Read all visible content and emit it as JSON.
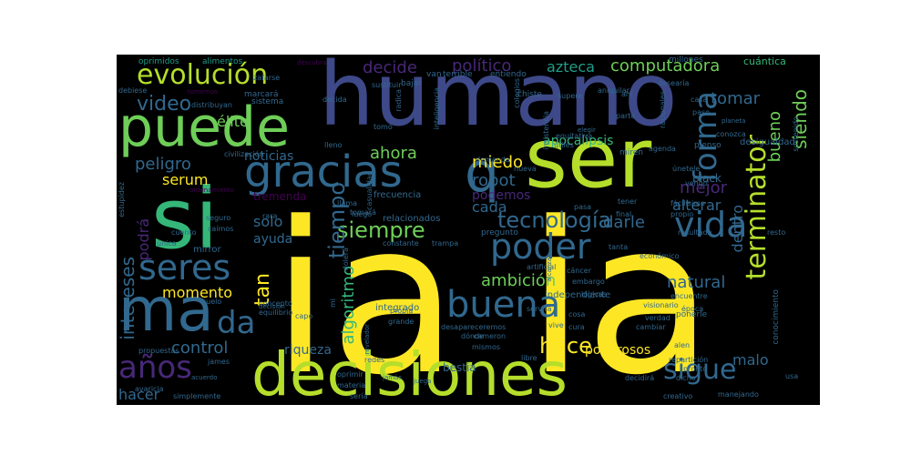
{
  "palette": {
    "yellow": "#fde725",
    "lime": "#b5de2b",
    "green": "#6ece58",
    "mint": "#35b779",
    "teal": "#1f9e89",
    "cyan": "#26828e",
    "steel": "#31688e",
    "blue": "#3e4989",
    "indigo": "#482878",
    "purple": "#440154"
  },
  "words": [
    {
      "text": "ia",
      "size": 230,
      "color": "yellow",
      "vertical": false
    },
    {
      "text": "ia",
      "size": 230,
      "color": "yellow",
      "vertical": false
    },
    {
      "text": "humano",
      "size": 96,
      "color": "blue",
      "vertical": false
    },
    {
      "text": "decisiones",
      "size": 66,
      "color": "lime",
      "vertical": false
    },
    {
      "text": "ser",
      "size": 90,
      "color": "lime",
      "vertical": false
    },
    {
      "text": "si",
      "size": 92,
      "color": "mint",
      "vertical": false
    },
    {
      "text": "puede",
      "size": 60,
      "color": "green",
      "vertical": false
    },
    {
      "text": "ma",
      "size": 66,
      "color": "steel",
      "vertical": false
    },
    {
      "text": "q",
      "size": 60,
      "color": "steel",
      "vertical": false
    },
    {
      "text": "gracias",
      "size": 48,
      "color": "steel",
      "vertical": false
    },
    {
      "text": "evolución",
      "size": 30,
      "color": "lime",
      "vertical": false
    },
    {
      "text": "buena",
      "size": 40,
      "color": "steel",
      "vertical": false
    },
    {
      "text": "poder",
      "size": 38,
      "color": "steel",
      "vertical": false
    },
    {
      "text": "vida",
      "size": 38,
      "color": "steel",
      "vertical": false
    },
    {
      "text": "seres",
      "size": 38,
      "color": "steel",
      "vertical": false
    },
    {
      "text": "años",
      "size": 34,
      "color": "indigo",
      "vertical": false
    },
    {
      "text": "da",
      "size": 34,
      "color": "steel",
      "vertical": false
    },
    {
      "text": "forma",
      "size": 34,
      "color": "steel",
      "vertical": true
    },
    {
      "text": "terminator",
      "size": 30,
      "color": "lime",
      "vertical": true
    },
    {
      "text": "sigue",
      "size": 30,
      "color": "steel",
      "vertical": false
    },
    {
      "text": "tecnología",
      "size": 24,
      "color": "steel",
      "vertical": false
    },
    {
      "text": "siempre",
      "size": 24,
      "color": "green",
      "vertical": false
    },
    {
      "text": "hace",
      "size": 24,
      "color": "yellow",
      "vertical": false
    },
    {
      "text": "tiempo",
      "size": 24,
      "color": "steel",
      "vertical": true
    },
    {
      "text": "algoritmo",
      "size": 18,
      "color": "mint",
      "vertical": true
    },
    {
      "text": "intereses",
      "size": 20,
      "color": "steel",
      "vertical": true
    },
    {
      "text": "podrá",
      "size": 16,
      "color": "indigo",
      "vertical": true
    },
    {
      "text": "tan",
      "size": 22,
      "color": "yellow",
      "vertical": true
    },
    {
      "text": "siendo",
      "size": 20,
      "color": "green",
      "vertical": true
    },
    {
      "text": "bueno",
      "size": 18,
      "color": "green",
      "vertical": true
    },
    {
      "text": "dentro",
      "size": 16,
      "color": "steel",
      "vertical": true
    },
    {
      "text": "computadora",
      "size": 18,
      "color": "green",
      "vertical": false
    },
    {
      "text": "político",
      "size": 18,
      "color": "indigo",
      "vertical": false
    },
    {
      "text": "decide",
      "size": 18,
      "color": "indigo",
      "vertical": false
    },
    {
      "text": "azteca",
      "size": 16,
      "color": "teal",
      "vertical": false
    },
    {
      "text": "video",
      "size": 22,
      "color": "steel",
      "vertical": false
    },
    {
      "text": "tomar",
      "size": 18,
      "color": "steel",
      "vertical": false
    },
    {
      "text": "peligro",
      "size": 18,
      "color": "steel",
      "vertical": false
    },
    {
      "text": "élite",
      "size": 16,
      "color": "green",
      "vertical": false
    },
    {
      "text": "noticias",
      "size": 14,
      "color": "steel",
      "vertical": false
    },
    {
      "text": "ahora",
      "size": 18,
      "color": "green",
      "vertical": false
    },
    {
      "text": "miedo",
      "size": 18,
      "color": "yellow",
      "vertical": false
    },
    {
      "text": "mejor",
      "size": 18,
      "color": "indigo",
      "vertical": false
    },
    {
      "text": "serum",
      "size": 16,
      "color": "yellow",
      "vertical": false
    },
    {
      "text": "robot",
      "size": 18,
      "color": "steel",
      "vertical": false
    },
    {
      "text": "podemos",
      "size": 14,
      "color": "indigo",
      "vertical": false
    },
    {
      "text": "cada",
      "size": 16,
      "color": "steel",
      "vertical": false
    },
    {
      "text": "darle",
      "size": 18,
      "color": "steel",
      "vertical": false
    },
    {
      "text": "alterar",
      "size": 16,
      "color": "steel",
      "vertical": false
    },
    {
      "text": "apocalipsis",
      "size": 14,
      "color": "mint",
      "vertical": false
    },
    {
      "text": "solo",
      "size": 16,
      "color": "steel",
      "vertical": false
    },
    {
      "text": "ayuda",
      "size": 14,
      "color": "steel",
      "vertical": false
    },
    {
      "text": "ambición",
      "size": 18,
      "color": "green",
      "vertical": false
    },
    {
      "text": "natural",
      "size": 18,
      "color": "steel",
      "vertical": false
    },
    {
      "text": "momento",
      "size": 16,
      "color": "yellow",
      "vertical": false
    },
    {
      "text": "control",
      "size": 18,
      "color": "steel",
      "vertical": false
    },
    {
      "text": "riqueza",
      "size": 14,
      "color": "steel",
      "vertical": false
    },
    {
      "text": "poderosos",
      "size": 14,
      "color": "yellow",
      "vertical": false
    },
    {
      "text": "malo",
      "size": 16,
      "color": "steel",
      "vertical": false
    },
    {
      "text": "hacer",
      "size": 16,
      "color": "steel",
      "vertical": false
    },
    {
      "text": "bestia",
      "size": 12,
      "color": "steel",
      "vertical": false
    },
    {
      "text": "black",
      "size": 12,
      "color": "steel",
      "vertical": false
    },
    {
      "text": "tremenda",
      "size": 12,
      "color": "purple",
      "vertical": false
    },
    {
      "text": "cuántica",
      "size": 11,
      "color": "mint",
      "vertical": false
    },
    {
      "text": "mirror",
      "size": 10,
      "color": "steel",
      "vertical": false
    },
    {
      "text": "desigualdad",
      "size": 10,
      "color": "steel",
      "vertical": false
    },
    {
      "text": "frecuencia",
      "size": 10,
      "color": "steel",
      "vertical": false
    },
    {
      "text": "relacionados",
      "size": 10,
      "color": "steel",
      "vertical": false
    },
    {
      "text": "integrado",
      "size": 10,
      "color": "steel",
      "vertical": false
    },
    {
      "text": "independiente",
      "size": 10,
      "color": "steel",
      "vertical": false
    },
    {
      "text": "conocimiento",
      "size": 9,
      "color": "steel",
      "vertical": true
    },
    {
      "text": "oprimidos",
      "size": 9,
      "color": "teal",
      "vertical": false
    },
    {
      "text": "alimentos",
      "size": 9,
      "color": "teal",
      "vertical": false
    },
    {
      "text": "millones",
      "size": 9,
      "color": "steel",
      "vertical": false
    },
    {
      "text": "terrible",
      "size": 9,
      "color": "steel",
      "vertical": false
    },
    {
      "text": "entiendo",
      "size": 9,
      "color": "steel",
      "vertical": false
    },
    {
      "text": "bajar",
      "size": 9,
      "color": "steel",
      "vertical": false
    },
    {
      "text": "van",
      "size": 9,
      "color": "steel",
      "vertical": false
    },
    {
      "text": "chiste",
      "size": 9,
      "color": "steel",
      "vertical": false
    },
    {
      "text": "sistema",
      "size": 9,
      "color": "steel",
      "vertical": false
    },
    {
      "text": "marcará",
      "size": 9,
      "color": "steel",
      "vertical": false
    },
    {
      "text": "distribuyan",
      "size": 8,
      "color": "steel",
      "vertical": false
    },
    {
      "text": "debiese",
      "size": 8,
      "color": "steel",
      "vertical": false
    },
    {
      "text": "civilización",
      "size": 8,
      "color": "steel",
      "vertical": false
    },
    {
      "text": "tomó",
      "size": 8,
      "color": "steel",
      "vertical": false
    },
    {
      "text": "lleno",
      "size": 8,
      "color": "steel",
      "vertical": false
    },
    {
      "text": "útiles",
      "size": 8,
      "color": "steel",
      "vertical": false
    },
    {
      "text": "equitativa",
      "size": 8,
      "color": "steel",
      "vertical": false
    },
    {
      "text": "pienso",
      "size": 9,
      "color": "steel",
      "vertical": false
    },
    {
      "text": "agenda",
      "size": 8,
      "color": "steel",
      "vertical": false
    },
    {
      "text": "miren",
      "size": 9,
      "color": "steel",
      "vertical": false
    },
    {
      "text": "nueva",
      "size": 8,
      "color": "steel",
      "vertical": false
    },
    {
      "text": "demanda",
      "size": 8,
      "color": "steel",
      "vertical": false
    },
    {
      "text": "únetele",
      "size": 8,
      "color": "steel",
      "vertical": false
    },
    {
      "text": "vengo",
      "size": 8,
      "color": "steel",
      "vertical": false
    },
    {
      "text": "llama",
      "size": 8,
      "color": "steel",
      "vertical": false
    },
    {
      "text": "tomará",
      "size": 8,
      "color": "steel",
      "vertical": false
    },
    {
      "text": "luego",
      "size": 8,
      "color": "steel",
      "vertical": false
    },
    {
      "text": "rara",
      "size": 8,
      "color": "steel",
      "vertical": false
    },
    {
      "text": "seguro",
      "size": 8,
      "color": "steel",
      "vertical": false
    },
    {
      "text": "caímos",
      "size": 8,
      "color": "steel",
      "vertical": false
    },
    {
      "text": "cuento",
      "size": 8,
      "color": "steel",
      "vertical": false
    },
    {
      "text": "única",
      "size": 8,
      "color": "steel",
      "vertical": false
    },
    {
      "text": "pregunto",
      "size": 9,
      "color": "steel",
      "vertical": false
    },
    {
      "text": "constante",
      "size": 8,
      "color": "steel",
      "vertical": false
    },
    {
      "text": "trampa",
      "size": 8,
      "color": "steel",
      "vertical": false
    },
    {
      "text": "pasa",
      "size": 8,
      "color": "steel",
      "vertical": false
    },
    {
      "text": "final",
      "size": 8,
      "color": "steel",
      "vertical": false
    },
    {
      "text": "tener",
      "size": 8,
      "color": "steel",
      "vertical": false
    },
    {
      "text": "fácilísimo",
      "size": 8,
      "color": "steel",
      "vertical": false
    },
    {
      "text": "propio",
      "size": 8,
      "color": "steel",
      "vertical": false
    },
    {
      "text": "resto",
      "size": 8,
      "color": "steel",
      "vertical": false
    },
    {
      "text": "resultado",
      "size": 8,
      "color": "steel",
      "vertical": false
    },
    {
      "text": "tanta",
      "size": 8,
      "color": "steel",
      "vertical": false
    },
    {
      "text": "cáncer",
      "size": 8,
      "color": "steel",
      "vertical": false
    },
    {
      "text": "embargo",
      "size": 8,
      "color": "steel",
      "vertical": false
    },
    {
      "text": "artificial",
      "size": 8,
      "color": "steel",
      "vertical": false
    },
    {
      "text": "económico",
      "size": 8,
      "color": "steel",
      "vertical": false
    },
    {
      "text": "visionario",
      "size": 8,
      "color": "steel",
      "vertical": false
    },
    {
      "text": "época",
      "size": 8,
      "color": "steel",
      "vertical": false
    },
    {
      "text": "encuentre",
      "size": 8,
      "color": "steel",
      "vertical": false
    },
    {
      "text": "lógicas",
      "size": 8,
      "color": "steel",
      "vertical": false
    },
    {
      "text": "verdad",
      "size": 8,
      "color": "steel",
      "vertical": false
    },
    {
      "text": "ponerle",
      "size": 9,
      "color": "steel",
      "vertical": false
    },
    {
      "text": "cambiar",
      "size": 8,
      "color": "steel",
      "vertical": false
    },
    {
      "text": "servirá",
      "size": 8,
      "color": "steel",
      "vertical": false
    },
    {
      "text": "cosa",
      "size": 8,
      "color": "steel",
      "vertical": false
    },
    {
      "text": "cura",
      "size": 8,
      "color": "steel",
      "vertical": false
    },
    {
      "text": "vive",
      "size": 8,
      "color": "steel",
      "vertical": false
    },
    {
      "text": "propia",
      "size": 8,
      "color": "steel",
      "vertical": false
    },
    {
      "text": "grande",
      "size": 8,
      "color": "steel",
      "vertical": false
    },
    {
      "text": "desapareceremos",
      "size": 8,
      "color": "steel",
      "vertical": false
    },
    {
      "text": "concepto",
      "size": 8,
      "color": "steel",
      "vertical": false
    },
    {
      "text": "equilibrio",
      "size": 8,
      "color": "steel",
      "vertical": false
    },
    {
      "text": "capo",
      "size": 8,
      "color": "steel",
      "vertical": false
    },
    {
      "text": "suelo",
      "size": 8,
      "color": "steel",
      "vertical": false
    },
    {
      "text": "decisión",
      "size": 7,
      "color": "steel",
      "vertical": false
    },
    {
      "text": "propuestas",
      "size": 8,
      "color": "steel",
      "vertical": false
    },
    {
      "text": "james",
      "size": 8,
      "color": "steel",
      "vertical": false
    },
    {
      "text": "cameron",
      "size": 8,
      "color": "steel",
      "vertical": false
    },
    {
      "text": "redes",
      "size": 8,
      "color": "steel",
      "vertical": false
    },
    {
      "text": "mismos",
      "size": 8,
      "color": "steel",
      "vertical": false
    },
    {
      "text": "libre",
      "size": 8,
      "color": "steel",
      "vertical": false
    },
    {
      "text": "pronto",
      "size": 8,
      "color": "steel",
      "vertical": false
    },
    {
      "text": "repartición",
      "size": 8,
      "color": "steel",
      "vertical": false
    },
    {
      "text": "dicho",
      "size": 8,
      "color": "steel",
      "vertical": false
    },
    {
      "text": "alen",
      "size": 8,
      "color": "steel",
      "vertical": false
    },
    {
      "text": "acuerdo",
      "size": 7,
      "color": "steel",
      "vertical": false
    },
    {
      "text": "avaricia",
      "size": 8,
      "color": "steel",
      "vertical": false
    },
    {
      "text": "simplemente",
      "size": 8,
      "color": "steel",
      "vertical": false
    },
    {
      "text": "oprimir",
      "size": 8,
      "color": "steel",
      "vertical": false
    },
    {
      "text": "materia",
      "size": 8,
      "color": "steel",
      "vertical": false
    },
    {
      "text": "sería",
      "size": 8,
      "color": "steel",
      "vertical": false
    },
    {
      "text": "decidirá",
      "size": 8,
      "color": "steel",
      "vertical": false
    },
    {
      "text": "creativo",
      "size": 8,
      "color": "steel",
      "vertical": false
    },
    {
      "text": "manejando",
      "size": 8,
      "color": "steel",
      "vertical": false
    },
    {
      "text": "usa",
      "size": 8,
      "color": "steel",
      "vertical": false
    },
    {
      "text": "dónde",
      "size": 8,
      "color": "steel",
      "vertical": false
    },
    {
      "text": "jamás",
      "size": 7,
      "color": "steel",
      "vertical": false
    },
    {
      "text": "juega",
      "size": 7,
      "color": "steel",
      "vertical": false
    },
    {
      "text": "ahí",
      "size": 8,
      "color": "steel",
      "vertical": false
    },
    {
      "text": "parte",
      "size": 8,
      "color": "steel",
      "vertical": false
    },
    {
      "text": "casa",
      "size": 8,
      "color": "steel",
      "vertical": false
    },
    {
      "text": "paso",
      "size": 8,
      "color": "steel",
      "vertical": false
    },
    {
      "text": "conozca",
      "size": 8,
      "color": "steel",
      "vertical": false
    },
    {
      "text": "desearía",
      "size": 8,
      "color": "steel",
      "vertical": false
    },
    {
      "text": "supere",
      "size": 8,
      "color": "steel",
      "vertical": false
    },
    {
      "text": "aniquilar",
      "size": 8,
      "color": "steel",
      "vertical": false
    },
    {
      "text": "planeta",
      "size": 7,
      "color": "steel",
      "vertical": false
    },
    {
      "text": "elegir",
      "size": 7,
      "color": "steel",
      "vertical": false
    },
    {
      "text": "tomemos",
      "size": 7,
      "color": "purple",
      "vertical": false
    },
    {
      "text": "descubra",
      "size": 7,
      "color": "purple",
      "vertical": false
    },
    {
      "text": "zafarse",
      "size": 8,
      "color": "steel",
      "vertical": false
    },
    {
      "text": "decida",
      "size": 8,
      "color": "steel",
      "vertical": false
    },
    {
      "text": "sustituir",
      "size": 8,
      "color": "steel",
      "vertical": false
    },
    {
      "text": "ordenamiento",
      "size": 7,
      "color": "purple",
      "vertical": false
    },
    {
      "text": "estupidez",
      "size": 8,
      "color": "steel",
      "vertical": true
    },
    {
      "text": "casualidad",
      "size": 8,
      "color": "steel",
      "vertical": true
    },
    {
      "text": "inteligencia",
      "size": 8,
      "color": "steel",
      "vertical": true
    },
    {
      "text": "colegios",
      "size": 8,
      "color": "steel",
      "vertical": true
    },
    {
      "text": "radica",
      "size": 8,
      "color": "steel",
      "vertical": true
    },
    {
      "text": "insistencia",
      "size": 8,
      "color": "steel",
      "vertical": true
    },
    {
      "text": "racionales",
      "size": 8,
      "color": "steel",
      "vertical": true
    },
    {
      "text": "sostenido",
      "size": 8,
      "color": "steel",
      "vertical": true
    },
    {
      "text": "dolerá",
      "size": 8,
      "color": "steel",
      "vertical": true
    },
    {
      "text": "revelador",
      "size": 7,
      "color": "steel",
      "vertical": true
    },
    {
      "text": "alcanzar",
      "size": 7,
      "color": "steel",
      "vertical": true
    },
    {
      "text": "mi",
      "size": 8,
      "color": "steel",
      "vertical": true
    }
  ]
}
